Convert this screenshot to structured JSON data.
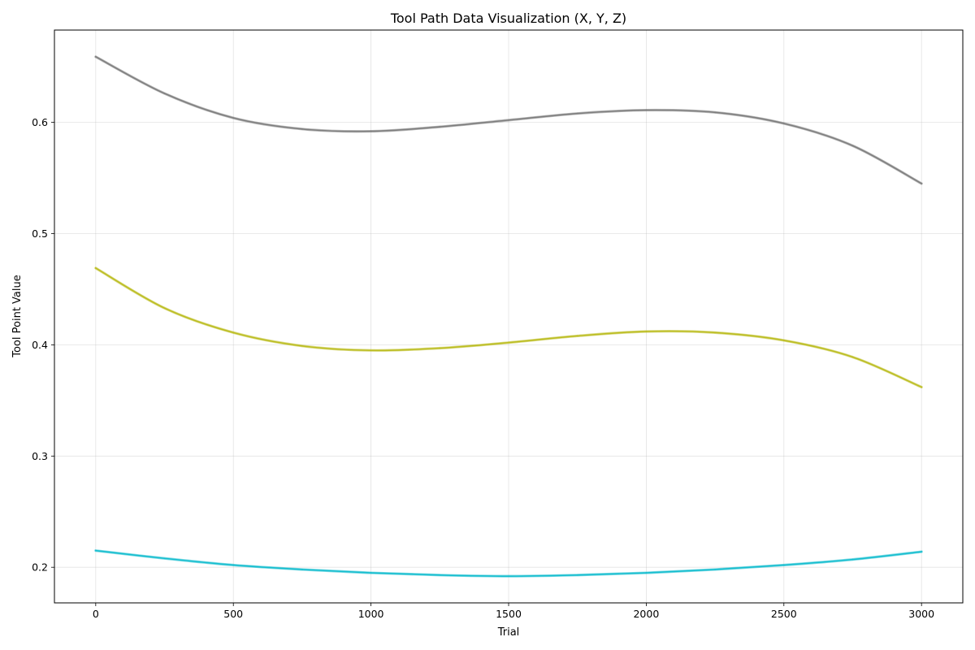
{
  "chart_data": {
    "type": "line",
    "title": "Tool Path Data Visualization (X, Y, Z)",
    "xlabel": "Trial",
    "ylabel": "Tool Point Value",
    "xlim": [
      -150,
      3150
    ],
    "ylim": [
      0.168,
      0.683
    ],
    "xticks": [
      0,
      500,
      1000,
      1500,
      2000,
      2500,
      3000
    ],
    "xtick_labels": [
      "0",
      "500",
      "1000",
      "1500",
      "2000",
      "2500",
      "3000"
    ],
    "yticks": [
      0.2,
      0.3,
      0.4,
      0.5,
      0.6
    ],
    "ytick_labels": [
      "0.2",
      "0.3",
      "0.4",
      "0.5",
      "0.6"
    ],
    "grid": true,
    "legend": "none",
    "series": [
      {
        "color": "#7f7f7f",
        "x": [
          0,
          250,
          500,
          750,
          1000,
          1250,
          1500,
          1750,
          2000,
          2250,
          2500,
          2750,
          3000
        ],
        "y": [
          0.659,
          0.626,
          0.604,
          0.594,
          0.592,
          0.596,
          0.602,
          0.608,
          0.611,
          0.609,
          0.599,
          0.579,
          0.545
        ]
      },
      {
        "color": "#bcbd22",
        "x": [
          0,
          250,
          500,
          750,
          1000,
          1250,
          1500,
          1750,
          2000,
          2250,
          2500,
          2750,
          3000
        ],
        "y": [
          0.469,
          0.433,
          0.411,
          0.399,
          0.395,
          0.397,
          0.402,
          0.408,
          0.412,
          0.411,
          0.404,
          0.389,
          0.362
        ]
      },
      {
        "color": "#17becf",
        "x": [
          0,
          250,
          500,
          750,
          1000,
          1250,
          1500,
          1750,
          2000,
          2250,
          2500,
          2750,
          3000
        ],
        "y": [
          0.215,
          0.208,
          0.202,
          0.198,
          0.195,
          0.193,
          0.192,
          0.193,
          0.195,
          0.198,
          0.202,
          0.207,
          0.214
        ]
      }
    ]
  }
}
